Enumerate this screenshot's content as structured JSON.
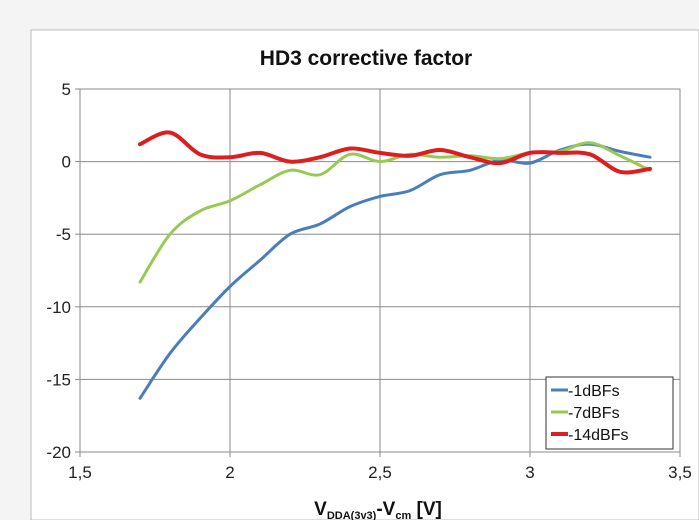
{
  "chart_data": {
    "type": "line",
    "title": "HD3  corrective factor",
    "xlabel": {
      "main": "V",
      "sub1": "DDA(3v3)",
      "mid": "-V",
      "sub2": "cm",
      "tail": " [V]"
    },
    "ylabel": "",
    "xlim": [
      1.5,
      3.5
    ],
    "ylim": [
      -20,
      5
    ],
    "xticks": [
      1.5,
      2,
      2.5,
      3,
      3.5
    ],
    "xtick_labels": [
      "1,5",
      "2",
      "2,5",
      "3",
      "3,5"
    ],
    "yticks": [
      5,
      0,
      -5,
      -10,
      -15,
      -20
    ],
    "ytick_labels": [
      "5",
      "0",
      "-5",
      "-10",
      "-15",
      "-20"
    ],
    "grid": true,
    "legend_position": "bottom-right",
    "series": [
      {
        "name": "-1dBFs",
        "color": "#4a7ebb",
        "x": [
          1.7,
          1.8,
          1.9,
          2.0,
          2.1,
          2.2,
          2.3,
          2.4,
          2.5,
          2.6,
          2.7,
          2.8,
          2.9,
          3.0,
          3.1,
          3.2,
          3.3,
          3.4
        ],
        "y": [
          -16.3,
          -13.2,
          -10.8,
          -8.6,
          -6.8,
          -5.0,
          -4.3,
          -3.1,
          -2.4,
          -2.0,
          -0.9,
          -0.6,
          0.1,
          -0.1,
          0.8,
          1.2,
          0.7,
          0.3
        ]
      },
      {
        "name": "-7dBFs",
        "color": "#98c954",
        "x": [
          1.7,
          1.8,
          1.9,
          2.0,
          2.1,
          2.2,
          2.3,
          2.4,
          2.5,
          2.6,
          2.7,
          2.8,
          2.9,
          3.0,
          3.1,
          3.2,
          3.3,
          3.4
        ],
        "y": [
          -8.3,
          -5.0,
          -3.4,
          -2.7,
          -1.6,
          -0.6,
          -0.9,
          0.5,
          0.0,
          0.5,
          0.3,
          0.4,
          0.2,
          0.6,
          0.7,
          1.3,
          0.4,
          -0.6
        ]
      },
      {
        "name": "-14dBFs",
        "color": "#dd1e1e",
        "x": [
          1.7,
          1.8,
          1.9,
          2.0,
          2.1,
          2.2,
          2.3,
          2.4,
          2.5,
          2.6,
          2.7,
          2.8,
          2.9,
          3.0,
          3.1,
          3.2,
          3.3,
          3.4
        ],
        "y": [
          1.2,
          2.0,
          0.5,
          0.3,
          0.6,
          0.0,
          0.3,
          0.9,
          0.6,
          0.4,
          0.8,
          0.3,
          -0.1,
          0.6,
          0.6,
          0.5,
          -0.7,
          -0.5
        ]
      }
    ]
  }
}
